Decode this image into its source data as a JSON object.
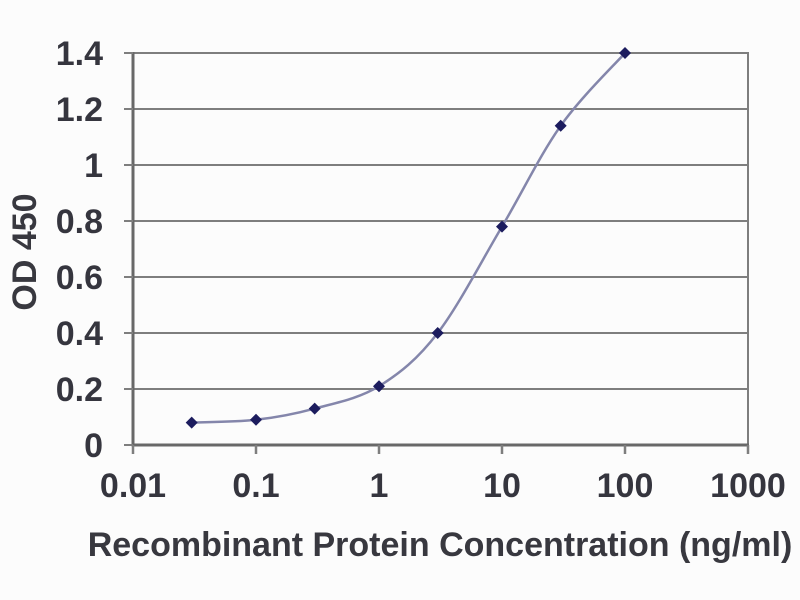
{
  "chart_data": {
    "type": "line",
    "title": "",
    "xlabel": "Recombinant Protein Concentration (ng/ml)",
    "ylabel": "OD 450",
    "x_scale": "log",
    "y_scale": "linear",
    "x": [
      0.03,
      0.1,
      0.3,
      1,
      3,
      10,
      30,
      100
    ],
    "y": [
      0.08,
      0.09,
      0.13,
      0.21,
      0.4,
      0.78,
      1.14,
      1.4
    ],
    "xlim": [
      0.01,
      1000
    ],
    "ylim": [
      0,
      1.4
    ],
    "x_ticks": [
      0.01,
      0.1,
      1,
      10,
      100,
      1000
    ],
    "x_tick_labels": [
      "0.01",
      "0.1",
      "1",
      "10",
      "100",
      "1000"
    ],
    "y_ticks": [
      0,
      0.2,
      0.4,
      0.6,
      0.8,
      1,
      1.2,
      1.4
    ],
    "y_tick_labels": [
      "0",
      "0.2",
      "0.4",
      "0.6",
      "0.8",
      "1",
      "1.2",
      "1.4"
    ],
    "grid": "horizontal-major",
    "legend": "none",
    "line_style": "smooth",
    "marker_shape": "diamond",
    "colors": {
      "line": "#8486ab",
      "marker": "#1c1c5e",
      "grid": "#7e7e7e",
      "axis": "#686868",
      "text": "#35353e",
      "plot_background": "#fcfcfc"
    }
  }
}
